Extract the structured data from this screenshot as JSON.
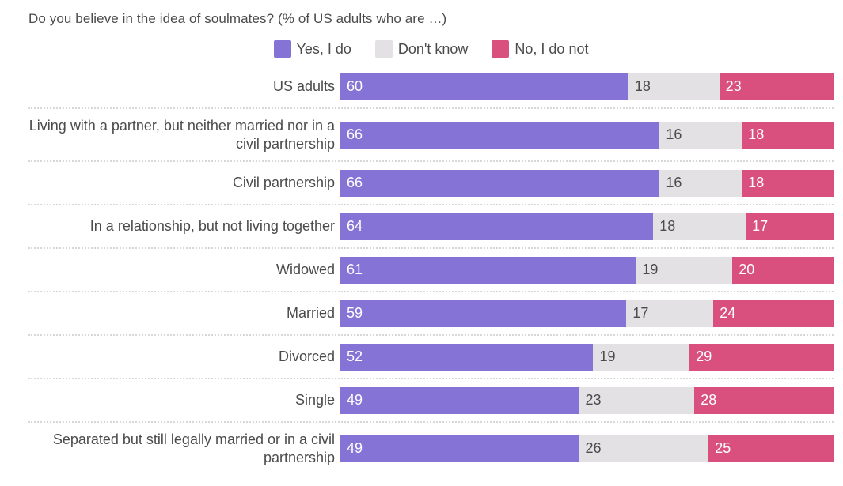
{
  "title": "Do you believe in the idea of soulmates? (% of US adults who are …)",
  "legend": [
    {
      "label": "Yes, I do",
      "color": "#8673d6"
    },
    {
      "label": "Don't know",
      "color": "#e3e1e4"
    },
    {
      "label": "No, I do not",
      "color": "#d94f7e"
    }
  ],
  "chart_data": {
    "type": "bar",
    "orientation": "horizontal",
    "stacked": true,
    "normalized_to_100_percent": true,
    "unit": "%",
    "title": "Do you believe in the idea of soulmates? (% of US adults who are …)",
    "legend_position": "top-center",
    "grid": "dotted row separators",
    "categories": [
      "US adults",
      "Living with a partner, but neither married nor in a civil partnership",
      "Civil partnership",
      "In a relationship, but not living together",
      "Widowed",
      "Married",
      "Divorced",
      "Single",
      "Separated but still legally married or in a civil partnership"
    ],
    "series": [
      {
        "name": "Yes, I do",
        "color": "#8673d6",
        "text_color": "#ffffff",
        "values": [
          60,
          66,
          66,
          64,
          61,
          59,
          52,
          49,
          49
        ]
      },
      {
        "name": "Don't know",
        "color": "#e3e1e4",
        "text_color": "#4b4b4b",
        "values": [
          18,
          16,
          16,
          18,
          19,
          17,
          19,
          23,
          26
        ]
      },
      {
        "name": "No, I do not",
        "color": "#d94f7e",
        "text_color": "#ffffff",
        "values": [
          23,
          18,
          18,
          17,
          20,
          24,
          29,
          28,
          25
        ]
      }
    ]
  }
}
